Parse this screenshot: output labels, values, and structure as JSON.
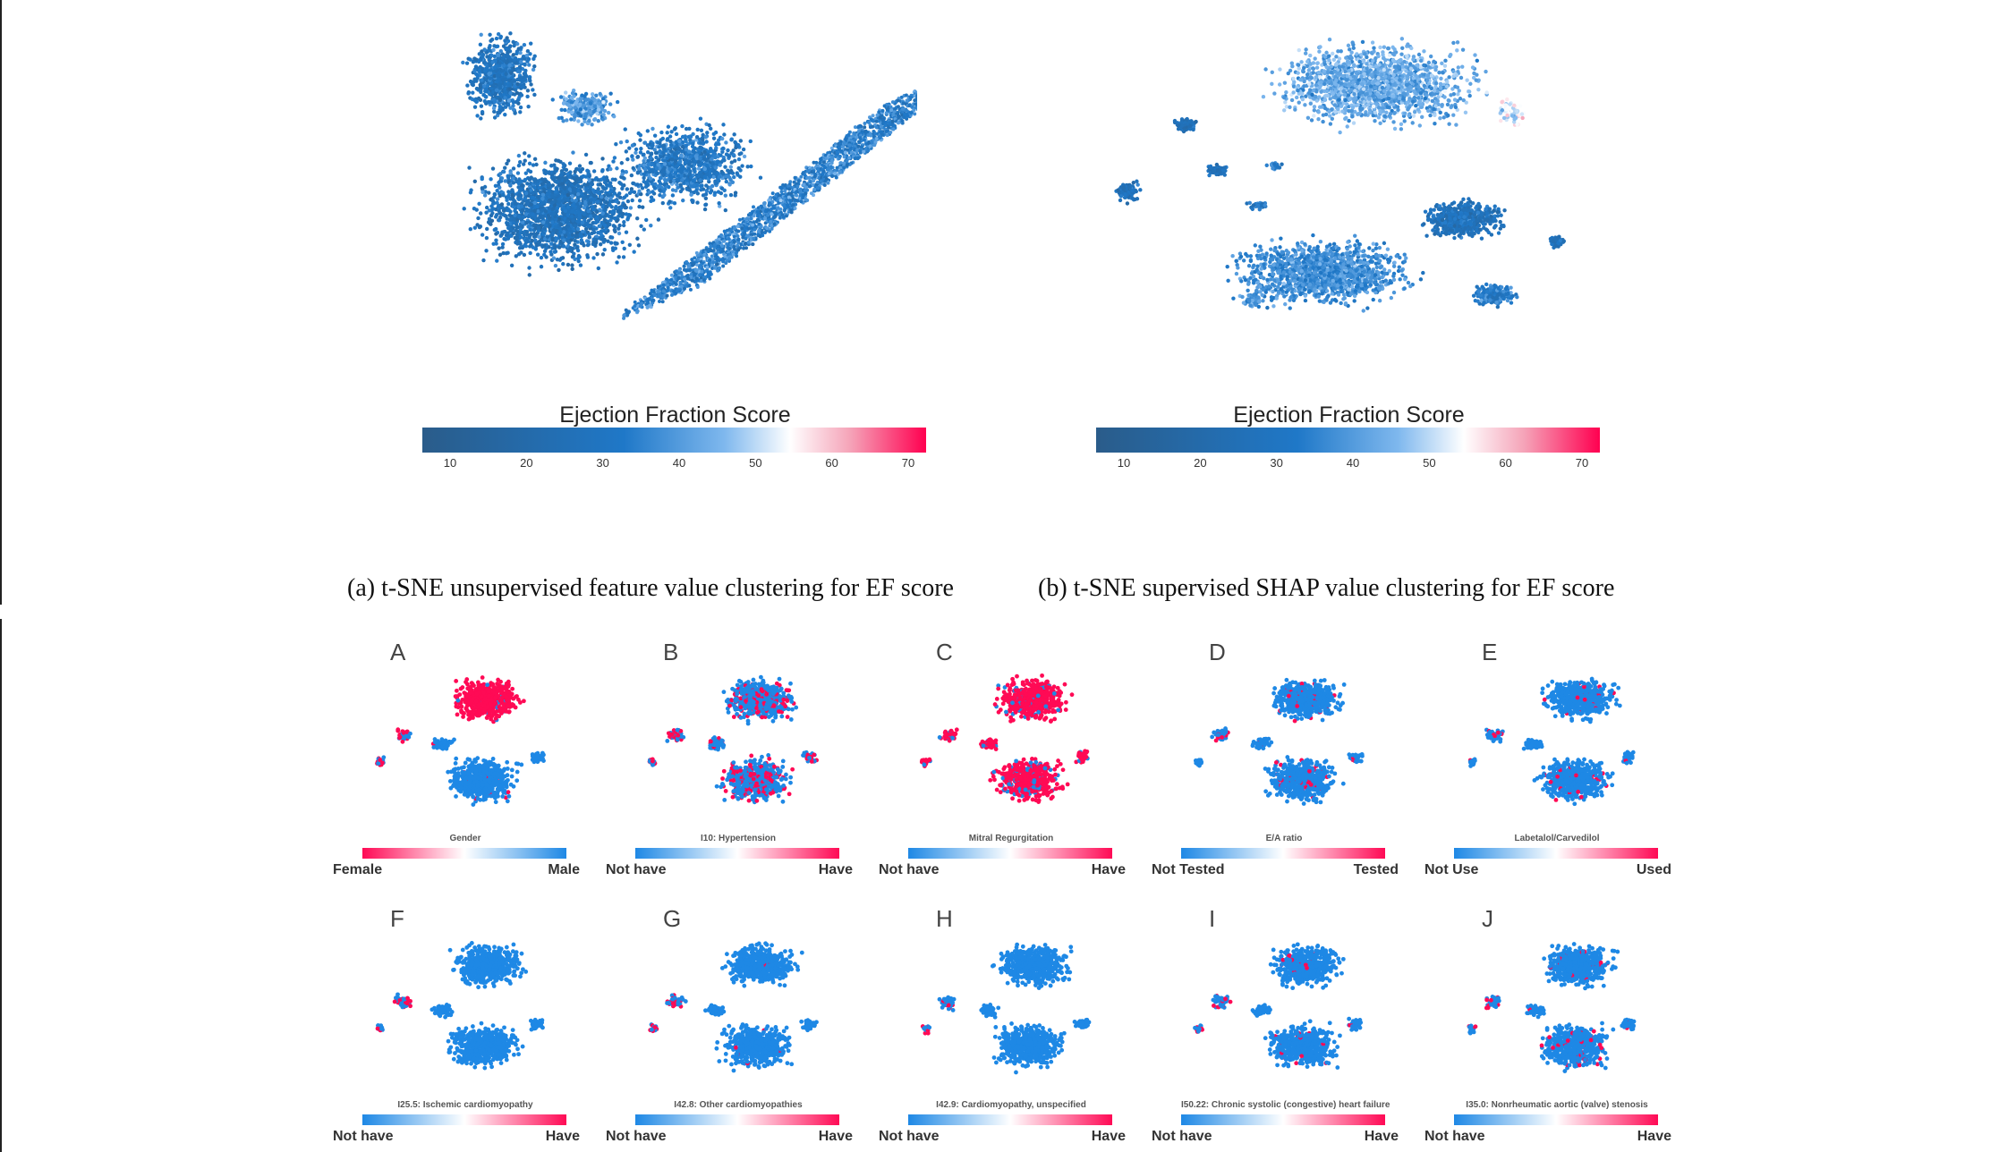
{
  "top": {
    "colorbar_title": "Ejection Fraction Score",
    "ticks": [
      "10",
      "20",
      "30",
      "40",
      "50",
      "60",
      "70"
    ],
    "caption_a": "(a)  t-SNE unsupervised feature value clustering for EF score",
    "caption_b": "(b)  t-SNE supervised SHAP value clustering for EF score"
  },
  "colors": {
    "ef_scale": [
      "#2a5c8a",
      "#1f78c8",
      "#7fb8ee",
      "#ffffff",
      "#f5a3b8",
      "#ff0050"
    ],
    "blue": "#1e88e5",
    "pink": "#ff0a55"
  },
  "panels": [
    {
      "letter": "A",
      "feature": "Gender",
      "left": "Female",
      "right": "Male",
      "reversed": true
    },
    {
      "letter": "B",
      "feature": "I10: Hypertension",
      "left": "Not have",
      "right": "Have",
      "reversed": false
    },
    {
      "letter": "C",
      "feature": "Mitral Regurgitation",
      "left": "Not have",
      "right": "Have",
      "reversed": false
    },
    {
      "letter": "D",
      "feature": "E/A ratio",
      "left": "Not Tested",
      "right": "Tested",
      "reversed": false
    },
    {
      "letter": "E",
      "feature": "Labetalol/Carvedilol",
      "left": "Not Use",
      "right": "Used",
      "reversed": false
    },
    {
      "letter": "F",
      "feature": "I25.5: Ischemic cardiomyopathy",
      "left": "Not have",
      "right": "Have",
      "reversed": false
    },
    {
      "letter": "G",
      "feature": "I42.8: Other cardiomyopathies",
      "left": "Not have",
      "right": "Have",
      "reversed": false
    },
    {
      "letter": "H",
      "feature": "I42.9: Cardiomyopathy, unspecified",
      "left": "Not have",
      "right": "Have",
      "reversed": false
    },
    {
      "letter": "I",
      "feature": "I50.22: Chronic systolic (congestive) heart failure",
      "left": "Not have",
      "right": "Have",
      "reversed": false
    },
    {
      "letter": "J",
      "feature": "I35.0: Nonrheumatic aortic (valve) stenosis",
      "left": "Not have",
      "right": "Have",
      "reversed": false
    }
  ]
}
